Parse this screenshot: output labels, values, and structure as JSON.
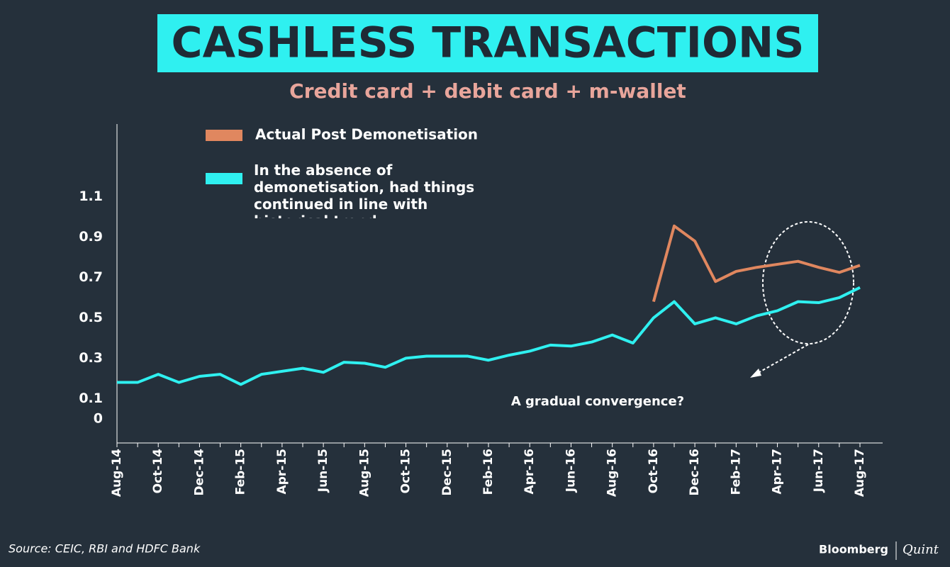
{
  "chart_data": {
    "type": "line",
    "title": "CASHLESS TRANSACTIONS",
    "subtitle": "Credit card + debit card + m-wallet",
    "categories": [
      "Aug-14",
      null,
      "Oct-14",
      null,
      "Dec-14",
      null,
      "Feb-15",
      null,
      "Apr-15",
      null,
      "Jun-15",
      null,
      "Aug-15",
      null,
      "Oct-15",
      null,
      "Dec-15",
      null,
      "Feb-16",
      null,
      "Apr-16",
      null,
      "Jun-16",
      null,
      "Aug-16",
      null,
      "Oct-16",
      null,
      "Dec-16",
      null,
      "Feb-17",
      null,
      "Apr-17",
      null,
      "Jun-17",
      null,
      "Aug-17"
    ],
    "series": [
      {
        "name": "Actual Post Demonetisation",
        "color": "#e0875f",
        "values": [
          null,
          null,
          null,
          null,
          null,
          null,
          null,
          null,
          null,
          null,
          null,
          null,
          null,
          null,
          null,
          null,
          null,
          null,
          null,
          null,
          null,
          null,
          null,
          null,
          null,
          null,
          0.58,
          0.955,
          0.88,
          0.68,
          0.73,
          0.75,
          0.765,
          0.78,
          0.75,
          0.725,
          0.76
        ]
      },
      {
        "name": "In the absence of demonetisation, had things continued in line with historical trend",
        "color": "#2ff0f0",
        "values": [
          0.18,
          0.18,
          0.22,
          0.18,
          0.21,
          0.22,
          0.17,
          0.22,
          0.235,
          0.25,
          0.23,
          0.28,
          0.275,
          0.255,
          0.3,
          0.31,
          0.31,
          0.31,
          0.29,
          0.315,
          0.335,
          0.365,
          0.36,
          0.38,
          0.415,
          0.375,
          0.5,
          0.58,
          0.47,
          0.5,
          0.47,
          0.51,
          0.535,
          0.58,
          0.575,
          0.6,
          0.65
        ]
      }
    ],
    "ylim": [
      -0.12,
      1.46
    ],
    "yticks": [
      0,
      0.1,
      0.3,
      0.5,
      0.7,
      0.9,
      1.1
    ],
    "annotation": "A gradual convergence?",
    "source": "Source: CEIC, RBI and HDFC Bank",
    "brand": [
      "Bloomberg",
      "Quint"
    ]
  }
}
